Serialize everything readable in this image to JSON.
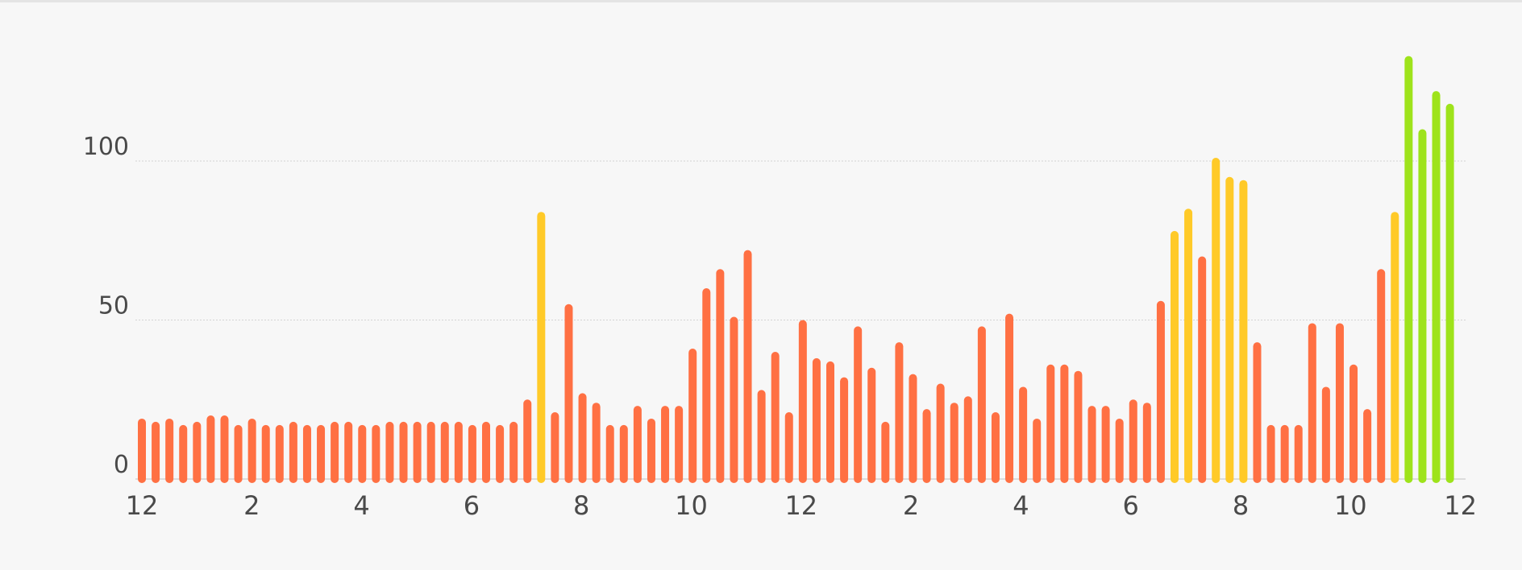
{
  "chart_data": {
    "type": "bar",
    "title": "",
    "xlabel": "",
    "ylabel": "",
    "ylim": [
      0,
      135
    ],
    "grid": true,
    "y_ticks": [
      0,
      50,
      100
    ],
    "y_tick_labels": [
      "0",
      "50",
      "100"
    ],
    "x_tick_labels": [
      "12",
      "2",
      "4",
      "6",
      "8",
      "10",
      "12",
      "2",
      "4",
      "6",
      "8",
      "10",
      "12"
    ],
    "colors": {
      "low": "#ff7043",
      "medium": "#ffca28",
      "high": "#9ee31b",
      "grid": "#d3d3d3"
    },
    "level_order": [
      "low",
      "medium",
      "high"
    ],
    "values": [
      19,
      18,
      19,
      17,
      18,
      20,
      20,
      17,
      19,
      17,
      17,
      18,
      17,
      17,
      18,
      18,
      17,
      17,
      18,
      18,
      18,
      18,
      18,
      18,
      17,
      18,
      17,
      18,
      25,
      84,
      21,
      55,
      27,
      24,
      17,
      17,
      23,
      19,
      23,
      23,
      41,
      60,
      66,
      51,
      72,
      28,
      40,
      21,
      50,
      38,
      37,
      32,
      48,
      35,
      18,
      43,
      33,
      22,
      30,
      24,
      26,
      48,
      21,
      52,
      29,
      19,
      36,
      36,
      34,
      23,
      23,
      19,
      25,
      24,
      56,
      78,
      85,
      70,
      101,
      95,
      94,
      43,
      17,
      17,
      17,
      49,
      29,
      49,
      36,
      22,
      66,
      84,
      133,
      110,
      122,
      118
    ],
    "levels": [
      0,
      0,
      0,
      0,
      0,
      0,
      0,
      0,
      0,
      0,
      0,
      0,
      0,
      0,
      0,
      0,
      0,
      0,
      0,
      0,
      0,
      0,
      0,
      0,
      0,
      0,
      0,
      0,
      0,
      1,
      0,
      0,
      0,
      0,
      0,
      0,
      0,
      0,
      0,
      0,
      0,
      0,
      0,
      0,
      0,
      0,
      0,
      0,
      0,
      0,
      0,
      0,
      0,
      0,
      0,
      0,
      0,
      0,
      0,
      0,
      0,
      0,
      0,
      0,
      0,
      0,
      0,
      0,
      0,
      0,
      0,
      0,
      0,
      0,
      0,
      1,
      1,
      0,
      1,
      1,
      1,
      0,
      0,
      0,
      0,
      0,
      0,
      0,
      0,
      0,
      0,
      1,
      2,
      2,
      2,
      2
    ]
  }
}
